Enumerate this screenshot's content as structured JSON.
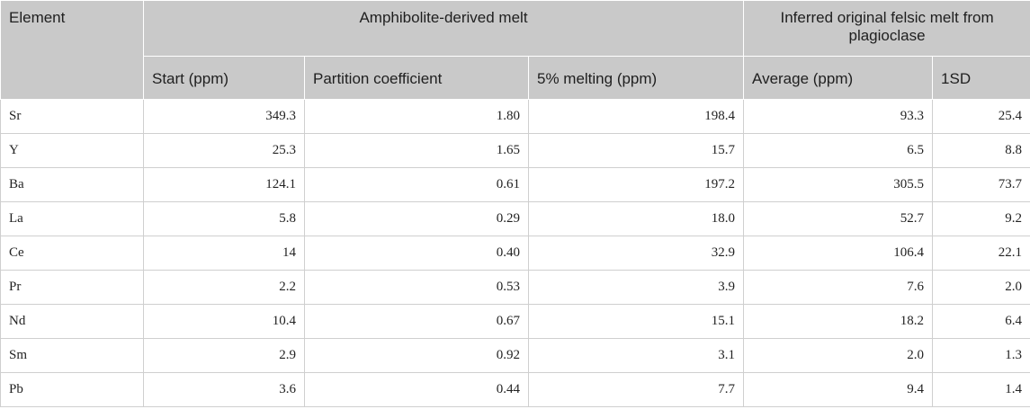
{
  "table": {
    "headers": {
      "element": "Element",
      "group_amphibolite": "Amphibolite-derived melt",
      "group_inferred": "Inferred original felsic melt from plagioclase",
      "start": "Start (ppm)",
      "partition": "Partition coefficient",
      "melting": "5% melting (ppm)",
      "average": "Average (ppm)",
      "sd": "1SD"
    },
    "rows": [
      {
        "element": "Sr",
        "start": "349.3",
        "partition": "1.80",
        "melting": "198.4",
        "average": "93.3",
        "sd": "25.4"
      },
      {
        "element": "Y",
        "start": "25.3",
        "partition": "1.65",
        "melting": "15.7",
        "average": "6.5",
        "sd": "8.8"
      },
      {
        "element": "Ba",
        "start": "124.1",
        "partition": "0.61",
        "melting": "197.2",
        "average": "305.5",
        "sd": "73.7"
      },
      {
        "element": "La",
        "start": "5.8",
        "partition": "0.29",
        "melting": "18.0",
        "average": "52.7",
        "sd": "9.2"
      },
      {
        "element": "Ce",
        "start": "14",
        "partition": "0.40",
        "melting": "32.9",
        "average": "106.4",
        "sd": "22.1"
      },
      {
        "element": "Pr",
        "start": "2.2",
        "partition": "0.53",
        "melting": "3.9",
        "average": "7.6",
        "sd": "2.0"
      },
      {
        "element": "Nd",
        "start": "10.4",
        "partition": "0.67",
        "melting": "15.1",
        "average": "18.2",
        "sd": "6.4"
      },
      {
        "element": "Sm",
        "start": "2.9",
        "partition": "0.92",
        "melting": "3.1",
        "average": "2.0",
        "sd": "1.3"
      },
      {
        "element": "Pb",
        "start": "3.6",
        "partition": "0.44",
        "melting": "7.7",
        "average": "9.4",
        "sd": "1.4"
      }
    ]
  }
}
